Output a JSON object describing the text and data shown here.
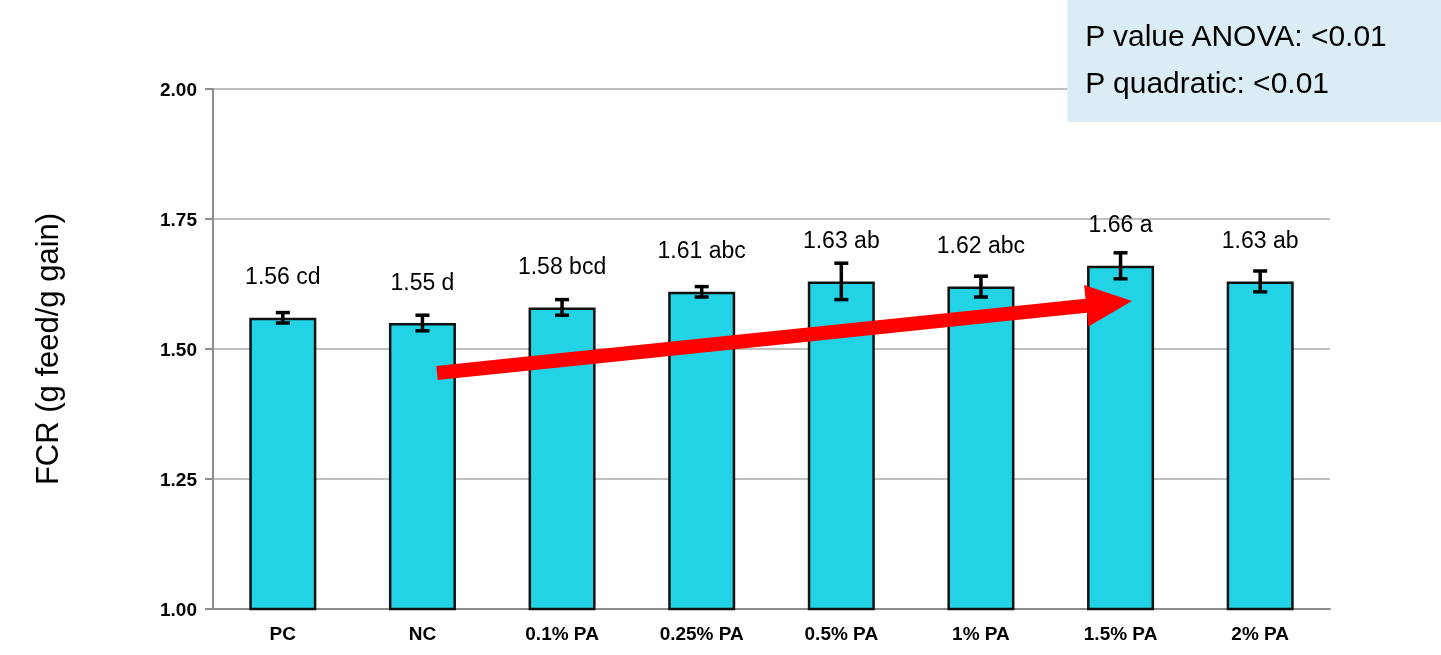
{
  "chart_data": {
    "type": "bar",
    "ylabel": "FCR (g feed/g gain)",
    "categories": [
      "PC",
      "NC",
      "0.1% PA",
      "0.25% PA",
      "0.5% PA",
      "1% PA",
      "1.5% PA",
      "2% PA"
    ],
    "values": [
      1.56,
      1.55,
      1.58,
      1.61,
      1.63,
      1.62,
      1.66,
      1.63
    ],
    "errors": [
      0.01,
      0.015,
      0.015,
      0.01,
      0.035,
      0.02,
      0.025,
      0.02
    ],
    "value_labels": [
      "1.56 cd",
      "1.55 d",
      "1.58 bcd",
      "1.61 abc",
      "1.63 ab",
      "1.62 abc",
      "1.66 a",
      "1.63 ab"
    ],
    "color": "#22d3e6",
    "ylim": [
      1,
      2
    ],
    "yticks": [
      {
        "value": 1,
        "label": "1.00"
      },
      {
        "value": 1.25,
        "label": "1.25"
      },
      {
        "value": 1.5,
        "label": "1.50"
      },
      {
        "value": 1.75,
        "label": "1.75"
      },
      {
        "value": 2,
        "label": "2.00"
      }
    ],
    "grid": "y",
    "annotations": [
      "P value ANOVA: <0.01",
      "P quadratic: <0.01"
    ]
  }
}
